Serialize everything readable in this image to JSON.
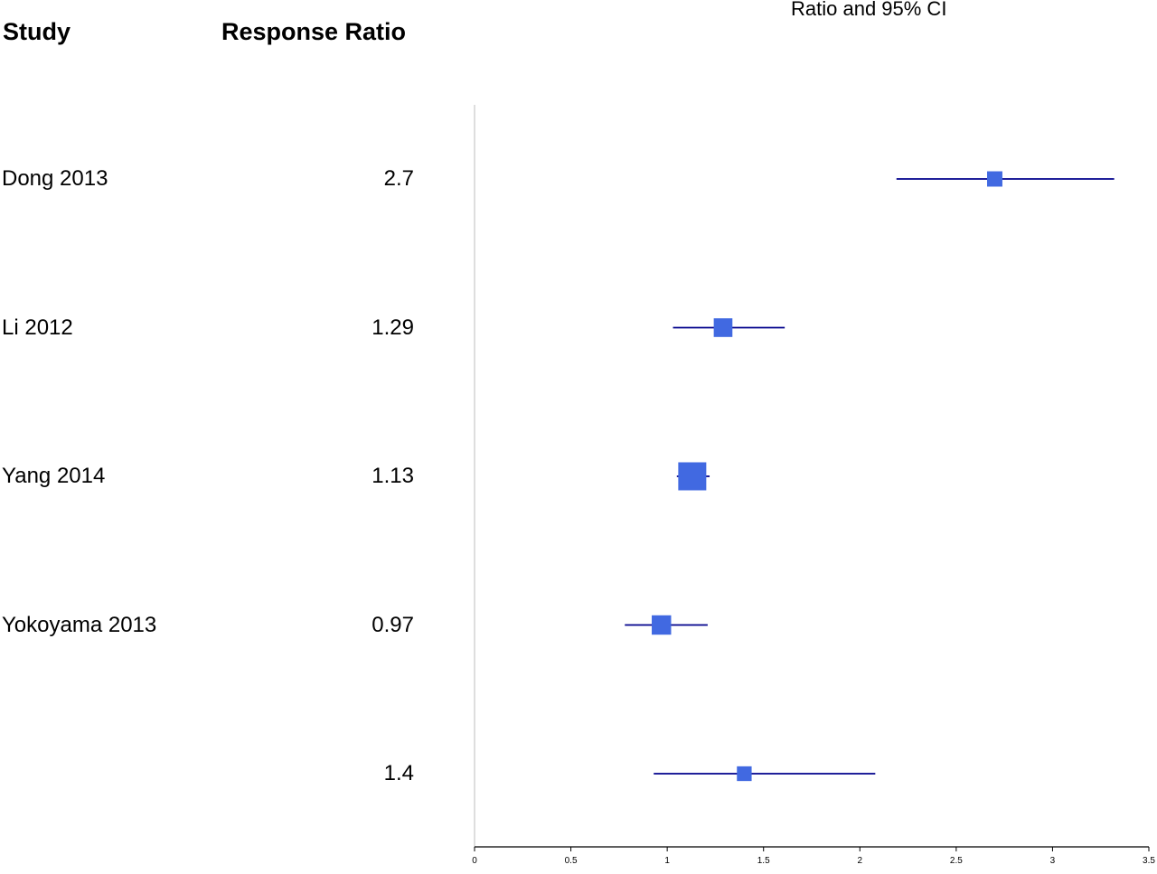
{
  "headers": {
    "study": "Study",
    "response_ratio": "Response Ratio"
  },
  "chart_data": {
    "type": "forest",
    "title": "Ratio and 95% CI",
    "xlim": [
      0,
      3.5
    ],
    "xticks": [
      "0",
      "0.5",
      "1",
      "1.5",
      "2",
      "2.5",
      "3",
      "3.5"
    ],
    "colors": {
      "marker": "#4169E1",
      "ci_line": "#00008B",
      "ref_line": "#C8C8C8",
      "axis": "#000000"
    },
    "rows": [
      {
        "study": "Dong 2013",
        "ratio_label": "2.7",
        "ratio": 2.7,
        "lower": 2.19,
        "upper": 3.32,
        "weight": 0.13
      },
      {
        "study": "Li 2012",
        "ratio_label": "1.29",
        "ratio": 1.29,
        "lower": 1.03,
        "upper": 1.61,
        "weight": 0.28
      },
      {
        "study": "Yang 2014",
        "ratio_label": "1.13",
        "ratio": 1.13,
        "lower": 1.05,
        "upper": 1.22,
        "weight": 1.0
      },
      {
        "study": "Yokoyama 2013",
        "ratio_label": "0.97",
        "ratio": 0.97,
        "lower": 0.78,
        "upper": 1.21,
        "weight": 0.32
      },
      {
        "study": "",
        "ratio_label": "1.4",
        "ratio": 1.4,
        "lower": 0.93,
        "upper": 2.08,
        "weight": 0.11
      }
    ]
  }
}
